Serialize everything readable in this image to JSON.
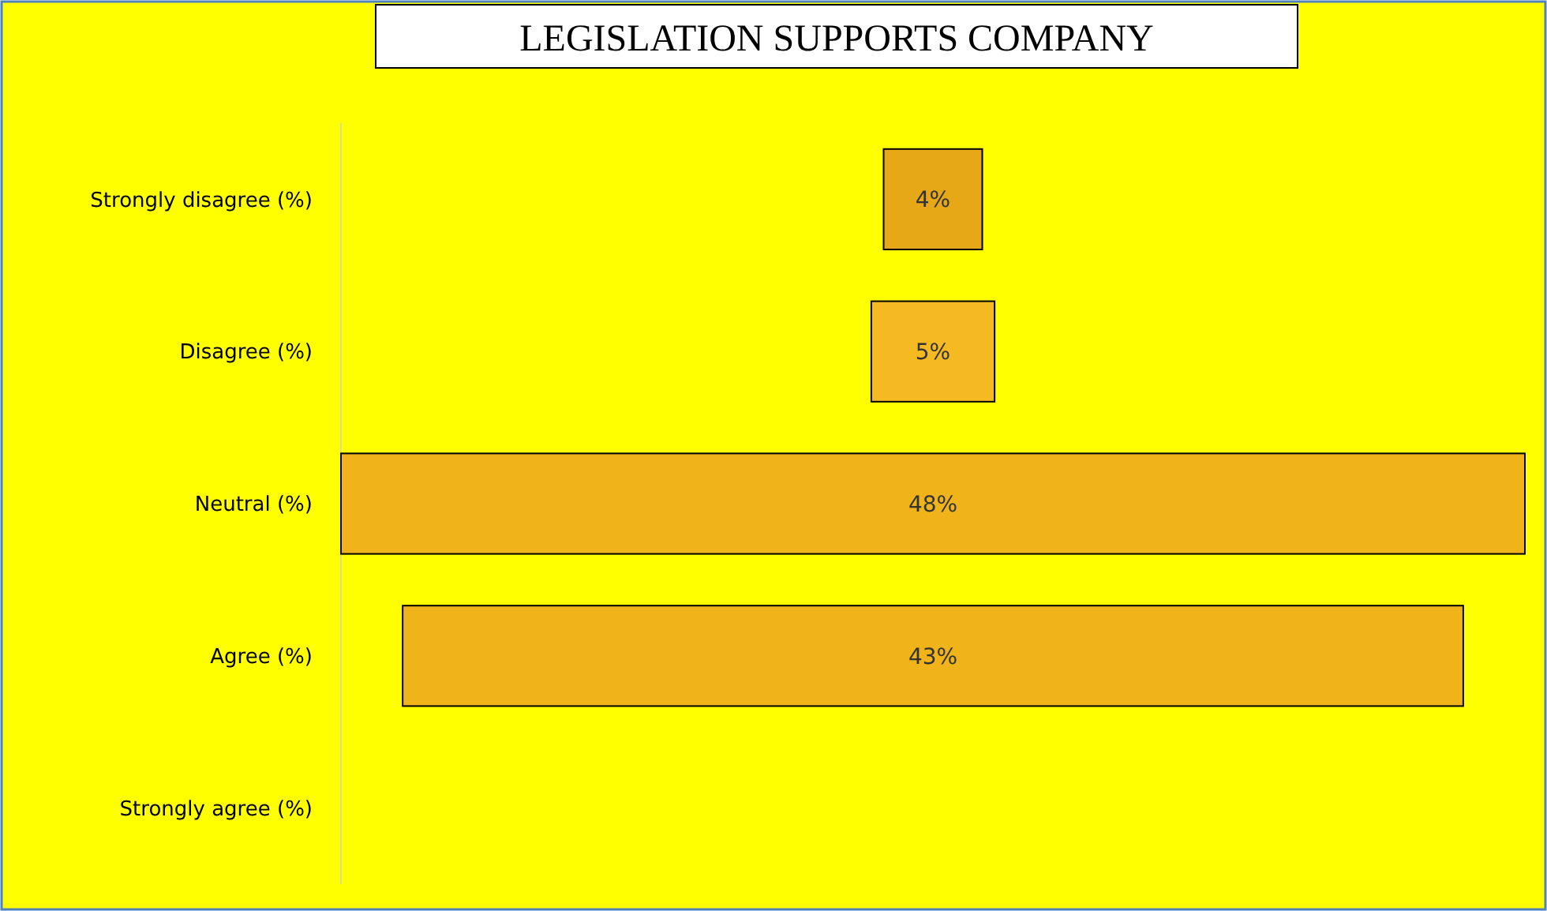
{
  "chart_data": {
    "type": "other",
    "title": "LEGISLATION SUPPORTS COMPANY",
    "categories": [
      "Strongly disagree (%)",
      "Disagree (%)",
      "Neutral (%)",
      "Agree (%)",
      "Strongly agree (%)"
    ],
    "values": [
      4,
      5,
      48,
      43,
      null
    ],
    "colors": [
      "#e6a817",
      "#f5b921",
      "#f0b41a",
      "#f0b41a",
      null
    ],
    "value_labels": [
      "4%",
      "5%",
      "48%",
      "43%",
      null
    ]
  }
}
